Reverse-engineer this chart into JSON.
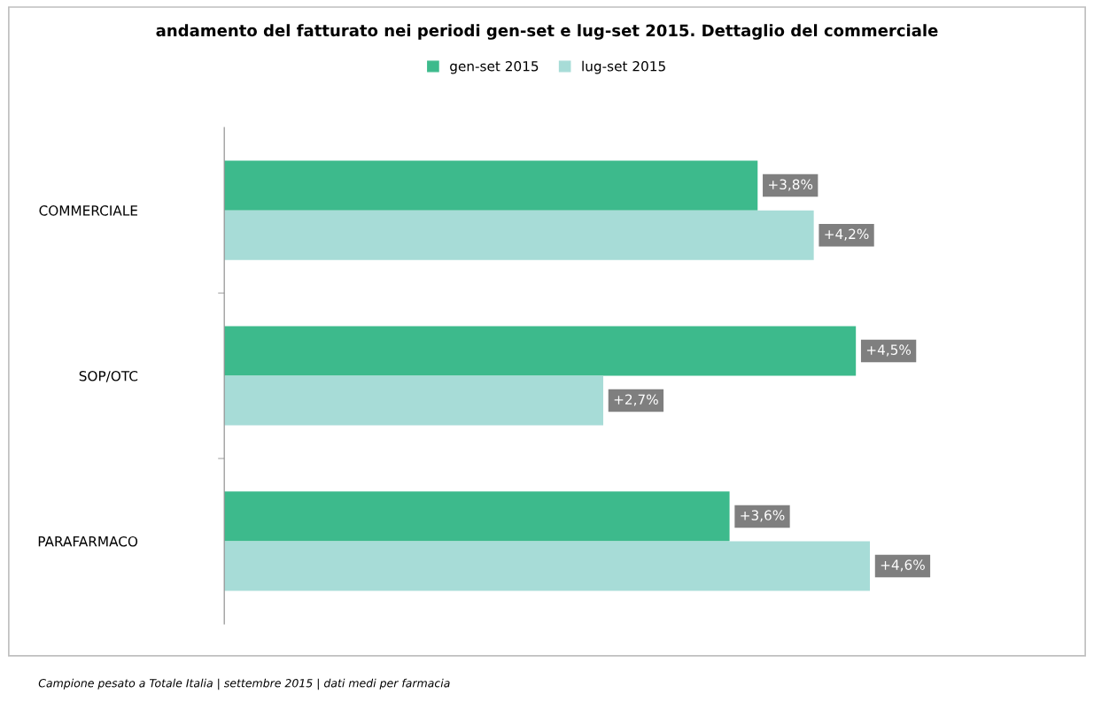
{
  "chart_data": {
    "type": "bar",
    "orientation": "horizontal",
    "title": "andamento del fatturato nei periodi gen-set e lug-set 2015. Dettaglio del commerciale",
    "categories": [
      "COMMERCIALE",
      "SOP/OTC",
      "PARAFARMACO"
    ],
    "series": [
      {
        "name": "gen-set 2015",
        "color": "#3dba8c",
        "values": [
          3.8,
          4.5,
          3.6
        ],
        "value_labels": [
          "+3,8%",
          "+4,5%",
          "+3,6%"
        ]
      },
      {
        "name": "lug-set 2015",
        "color": "#a7dcd7",
        "values": [
          4.2,
          2.7,
          4.6
        ],
        "value_labels": [
          "+4,2%",
          "+2,7%",
          "+4,6%"
        ]
      }
    ],
    "legend": "top",
    "grid": false,
    "tick_labels": "y",
    "annotations": [
      "Campione pesato a Totale Italia | settembre 2015 | dati medi per farmacia"
    ]
  }
}
